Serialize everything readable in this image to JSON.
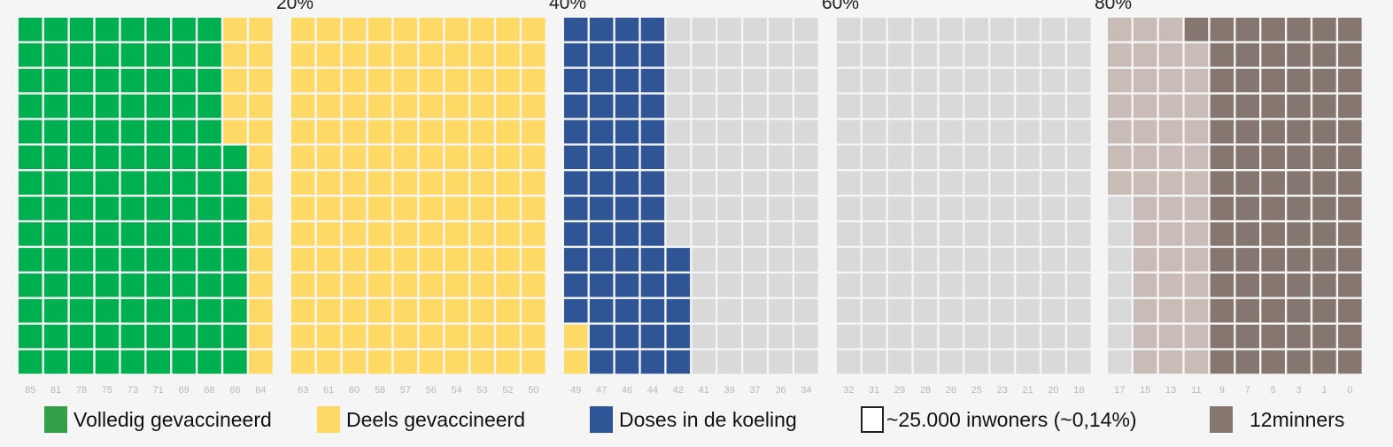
{
  "chart_data": {
    "type": "waffle",
    "title": "",
    "percent_markers": [
      "20%",
      "40%",
      "60%",
      "80%"
    ],
    "rows_per_column": 14,
    "column_labels": [
      "85",
      "81",
      "78",
      "75",
      "73",
      "71",
      "69",
      "68",
      "66",
      "64",
      "63",
      "61",
      "60",
      "58",
      "57",
      "56",
      "54",
      "53",
      "52",
      "50",
      "49",
      "47",
      "46",
      "44",
      "42",
      "41",
      "39",
      "37",
      "36",
      "34",
      "32",
      "31",
      "29",
      "28",
      "26",
      "25",
      "23",
      "21",
      "20",
      "18",
      "17",
      "15",
      "13",
      "11",
      "9",
      "7",
      "5",
      "3",
      "1",
      "0"
    ],
    "columns": [
      {
        "vol": 14
      },
      {
        "vol": 14
      },
      {
        "vol": 14
      },
      {
        "vol": 14
      },
      {
        "vol": 14
      },
      {
        "vol": 14
      },
      {
        "vol": 14
      },
      {
        "vol": 14
      },
      {
        "vol": 9,
        "deel": 5
      },
      {
        "deel": 14
      },
      {
        "deel": 14
      },
      {
        "deel": 14
      },
      {
        "deel": 14
      },
      {
        "deel": 14
      },
      {
        "deel": 14
      },
      {
        "deel": 14
      },
      {
        "deel": 14
      },
      {
        "deel": 14
      },
      {
        "deel": 14
      },
      {
        "deel": 14
      },
      {
        "deel": 2,
        "koel": 12
      },
      {
        "koel": 14
      },
      {
        "koel": 14
      },
      {
        "koel": 14
      },
      {
        "koel": 5,
        "leeg": 9
      },
      {
        "leeg": 14
      },
      {
        "leeg": 14
      },
      {
        "leeg": 14
      },
      {
        "leeg": 14
      },
      {
        "leeg": 14
      },
      {
        "leeg": 14
      },
      {
        "leeg": 14
      },
      {
        "leeg": 14
      },
      {
        "leeg": 14
      },
      {
        "leeg": 14
      },
      {
        "leeg": 14
      },
      {
        "leeg": 14
      },
      {
        "leeg": 14
      },
      {
        "leeg": 14
      },
      {
        "leeg": 14
      },
      {
        "leeg": 7,
        "niet": 7
      },
      {
        "niet": 14
      },
      {
        "niet": 14
      },
      {
        "niet": 13,
        "kind": 1
      },
      {
        "kind": 14
      },
      {
        "kind": 14
      },
      {
        "kind": 14
      },
      {
        "kind": 14
      },
      {
        "kind": 14
      },
      {
        "kind": 14
      }
    ],
    "legend": [
      {
        "key": "vol",
        "label": "Volledig gevaccineerd"
      },
      {
        "key": "deel",
        "label": "Deels gevaccineerd"
      },
      {
        "key": "koel",
        "label": "Doses in de koeling"
      },
      {
        "key": "unit",
        "label": "~25.000 inwoners (~0,14%)"
      },
      {
        "key": "kind",
        "label": "12minners"
      }
    ],
    "colors": {
      "vol": "#00b050",
      "deel": "#ffd966",
      "koel": "#2f5597",
      "leeg": "#d9d9d9",
      "niet": "#c9bcb6",
      "kind": "#857670",
      "vol_legend": "#33a04a",
      "unit_border": "#222222"
    }
  }
}
